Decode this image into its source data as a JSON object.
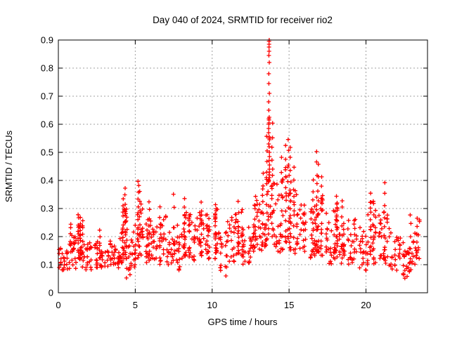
{
  "chart_data": {
    "type": "scatter",
    "title": "Day 040 of 2024, SRMTID for receiver rio2",
    "xlabel": "GPS time / hours",
    "ylabel": "SRMTID / TECUs",
    "xlim": [
      0,
      24
    ],
    "ylim": [
      0,
      0.9
    ],
    "xticks": [
      0,
      5,
      10,
      15,
      20
    ],
    "xtick_labels": [
      "0",
      "5",
      "10",
      "15",
      "20"
    ],
    "yticks": [
      0,
      0.1,
      0.2,
      0.3,
      0.4,
      0.5,
      0.6,
      0.7,
      0.8,
      0.9
    ],
    "ytick_labels": [
      "0",
      "0.1",
      "0.2",
      "0.3",
      "0.4",
      "0.5",
      "0.6",
      "0.7",
      "0.8",
      "0.9"
    ],
    "grid": true,
    "legend": "none",
    "marker": "plus",
    "marker_color": "#ff0000",
    "grid_color": "#a0a0a0",
    "axis_color": "#000000",
    "band_bins": [
      [
        0.0,
        0.09,
        0.17,
        10
      ],
      [
        0.25,
        0.08,
        0.16,
        10
      ],
      [
        0.5,
        0.08,
        0.18,
        10
      ],
      [
        0.75,
        0.09,
        0.22,
        10
      ],
      [
        1.0,
        0.08,
        0.2,
        10
      ],
      [
        1.25,
        0.1,
        0.26,
        12
      ],
      [
        1.5,
        0.09,
        0.24,
        10
      ],
      [
        1.75,
        0.08,
        0.2,
        10
      ],
      [
        2.0,
        0.08,
        0.18,
        10
      ],
      [
        2.25,
        0.09,
        0.19,
        10
      ],
      [
        2.5,
        0.08,
        0.2,
        10
      ],
      [
        2.75,
        0.09,
        0.21,
        10
      ],
      [
        3.0,
        0.09,
        0.18,
        10
      ],
      [
        3.25,
        0.1,
        0.19,
        10
      ],
      [
        3.5,
        0.08,
        0.17,
        10
      ],
      [
        3.75,
        0.07,
        0.16,
        10
      ],
      [
        4.0,
        0.1,
        0.24,
        12
      ],
      [
        4.25,
        0.12,
        0.3,
        14
      ],
      [
        4.5,
        0.06,
        0.24,
        12
      ],
      [
        4.75,
        0.08,
        0.22,
        10
      ],
      [
        5.0,
        0.12,
        0.3,
        12
      ],
      [
        5.25,
        0.12,
        0.32,
        12
      ],
      [
        5.5,
        0.1,
        0.26,
        10
      ],
      [
        5.75,
        0.12,
        0.28,
        12
      ],
      [
        6.0,
        0.12,
        0.24,
        10
      ],
      [
        6.25,
        0.12,
        0.26,
        10
      ],
      [
        6.5,
        0.1,
        0.26,
        12
      ],
      [
        6.75,
        0.12,
        0.28,
        10
      ],
      [
        7.0,
        0.1,
        0.24,
        10
      ],
      [
        7.25,
        0.1,
        0.24,
        10
      ],
      [
        7.5,
        0.1,
        0.26,
        12
      ],
      [
        7.75,
        0.07,
        0.22,
        10
      ],
      [
        8.0,
        0.12,
        0.28,
        12
      ],
      [
        8.25,
        0.13,
        0.3,
        12
      ],
      [
        8.5,
        0.12,
        0.28,
        12
      ],
      [
        8.75,
        0.11,
        0.26,
        10
      ],
      [
        9.0,
        0.13,
        0.29,
        12
      ],
      [
        9.25,
        0.13,
        0.3,
        12
      ],
      [
        9.5,
        0.12,
        0.28,
        12
      ],
      [
        9.75,
        0.12,
        0.27,
        10
      ],
      [
        10.0,
        0.11,
        0.29,
        12
      ],
      [
        10.25,
        0.12,
        0.3,
        12
      ],
      [
        10.5,
        0.07,
        0.24,
        10
      ],
      [
        10.75,
        0.06,
        0.22,
        10
      ],
      [
        11.0,
        0.09,
        0.26,
        10
      ],
      [
        11.25,
        0.11,
        0.28,
        12
      ],
      [
        11.5,
        0.12,
        0.3,
        12
      ],
      [
        11.75,
        0.13,
        0.31,
        12
      ],
      [
        12.0,
        0.1,
        0.28,
        10
      ],
      [
        12.25,
        0.08,
        0.26,
        10
      ],
      [
        12.5,
        0.14,
        0.31,
        12
      ],
      [
        12.75,
        0.15,
        0.33,
        12
      ],
      [
        13.0,
        0.15,
        0.35,
        12
      ],
      [
        13.25,
        0.16,
        0.38,
        12
      ],
      [
        13.5,
        0.18,
        0.42,
        12
      ],
      [
        13.75,
        0.2,
        0.45,
        12
      ],
      [
        14.0,
        0.15,
        0.4,
        10
      ],
      [
        14.25,
        0.14,
        0.35,
        10
      ],
      [
        14.5,
        0.15,
        0.42,
        10
      ],
      [
        14.75,
        0.16,
        0.45,
        10
      ],
      [
        15.0,
        0.15,
        0.42,
        12
      ],
      [
        15.25,
        0.14,
        0.38,
        10
      ],
      [
        15.5,
        0.14,
        0.3,
        10
      ],
      [
        15.75,
        0.15,
        0.32,
        10
      ],
      [
        16.0,
        0.13,
        0.33,
        10
      ],
      [
        16.25,
        0.12,
        0.3,
        10
      ],
      [
        16.5,
        0.13,
        0.36,
        12
      ],
      [
        16.75,
        0.14,
        0.4,
        12
      ],
      [
        17.0,
        0.13,
        0.35,
        12
      ],
      [
        17.25,
        0.12,
        0.3,
        10
      ],
      [
        17.5,
        0.1,
        0.28,
        10
      ],
      [
        17.75,
        0.12,
        0.3,
        12
      ],
      [
        18.0,
        0.14,
        0.33,
        12
      ],
      [
        18.25,
        0.1,
        0.28,
        10
      ],
      [
        18.5,
        0.12,
        0.3,
        12
      ],
      [
        18.75,
        0.1,
        0.26,
        10
      ],
      [
        19.0,
        0.1,
        0.27,
        10
      ],
      [
        19.25,
        0.12,
        0.27,
        10
      ],
      [
        19.5,
        0.08,
        0.24,
        10
      ],
      [
        19.75,
        0.08,
        0.22,
        10
      ],
      [
        20.0,
        0.1,
        0.28,
        10
      ],
      [
        20.25,
        0.13,
        0.33,
        12
      ],
      [
        20.5,
        0.1,
        0.3,
        10
      ],
      [
        20.75,
        0.1,
        0.28,
        10
      ],
      [
        21.0,
        0.12,
        0.32,
        12
      ],
      [
        21.25,
        0.1,
        0.28,
        10
      ],
      [
        21.5,
        0.08,
        0.24,
        10
      ],
      [
        21.75,
        0.08,
        0.22,
        10
      ],
      [
        22.0,
        0.07,
        0.2,
        10
      ],
      [
        22.25,
        0.06,
        0.18,
        10
      ],
      [
        22.5,
        0.05,
        0.16,
        10
      ],
      [
        22.75,
        0.07,
        0.18,
        10
      ],
      [
        23.0,
        0.1,
        0.22,
        10
      ],
      [
        23.25,
        0.12,
        0.26,
        10
      ]
    ],
    "spike_columns": [
      [
        0.8,
        0.14,
        0.25,
        6
      ],
      [
        1.3,
        0.12,
        0.285,
        10
      ],
      [
        1.45,
        0.12,
        0.27,
        8
      ],
      [
        1.6,
        0.12,
        0.26,
        6
      ],
      [
        2.7,
        0.1,
        0.22,
        6
      ],
      [
        4.2,
        0.14,
        0.33,
        10
      ],
      [
        4.35,
        0.15,
        0.37,
        10
      ],
      [
        4.45,
        0.05,
        0.3,
        8
      ],
      [
        5.2,
        0.14,
        0.4,
        12
      ],
      [
        5.3,
        0.14,
        0.36,
        8
      ],
      [
        5.9,
        0.12,
        0.33,
        8
      ],
      [
        6.6,
        0.12,
        0.3,
        6
      ],
      [
        7.5,
        0.3,
        0.355,
        2
      ],
      [
        8.2,
        0.14,
        0.33,
        8
      ],
      [
        9.3,
        0.14,
        0.32,
        6
      ],
      [
        10.2,
        0.12,
        0.32,
        6
      ],
      [
        11.7,
        0.14,
        0.33,
        6
      ],
      [
        12.8,
        0.16,
        0.34,
        6
      ],
      [
        13.3,
        0.18,
        0.42,
        8
      ],
      [
        13.55,
        0.2,
        0.55,
        10
      ],
      [
        13.9,
        0.2,
        0.6,
        10
      ],
      [
        14.5,
        0.16,
        0.48,
        8
      ],
      [
        14.8,
        0.18,
        0.52,
        10
      ],
      [
        14.95,
        0.2,
        0.55,
        8
      ],
      [
        15.1,
        0.16,
        0.52,
        10
      ],
      [
        15.3,
        0.15,
        0.45,
        8
      ],
      [
        16.55,
        0.14,
        0.4,
        8
      ],
      [
        16.8,
        0.15,
        0.5,
        10
      ],
      [
        16.9,
        0.14,
        0.46,
        8
      ],
      [
        17.1,
        0.13,
        0.42,
        8
      ],
      [
        18.1,
        0.13,
        0.35,
        10
      ],
      [
        18.45,
        0.12,
        0.33,
        8
      ],
      [
        20.3,
        0.13,
        0.35,
        8
      ],
      [
        20.5,
        0.12,
        0.32,
        6
      ],
      [
        21.2,
        0.12,
        0.39,
        8
      ],
      [
        22.9,
        0.08,
        0.28,
        6
      ],
      [
        23.3,
        0.12,
        0.27,
        6
      ]
    ],
    "peak_column": {
      "t": 13.7,
      "values": [
        0.9,
        0.895,
        0.885,
        0.875,
        0.86,
        0.845,
        0.82,
        0.78,
        0.745,
        0.71,
        0.68,
        0.65,
        0.625,
        0.62,
        0.615,
        0.605,
        0.6,
        0.585,
        0.57,
        0.555,
        0.55,
        0.545,
        0.53,
        0.52,
        0.5,
        0.485,
        0.47,
        0.455,
        0.44,
        0.43,
        0.42,
        0.41,
        0.4
      ]
    }
  }
}
